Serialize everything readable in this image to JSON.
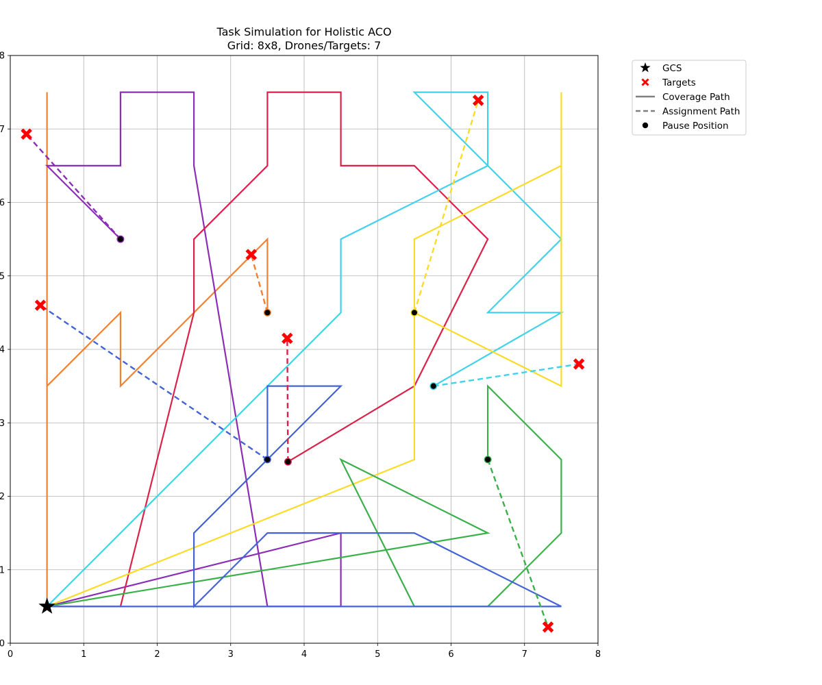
{
  "chart_data": {
    "type": "line",
    "title": "Task Simulation for Holistic ACO",
    "subtitle": "Grid: 8x8, Drones/Targets: 7",
    "xlabel": "",
    "ylabel": "",
    "xlim": [
      0,
      8
    ],
    "ylim": [
      0,
      8
    ],
    "xticks": [
      "0",
      "1",
      "2",
      "3",
      "4",
      "5",
      "6",
      "7",
      "8"
    ],
    "yticks": [
      "0",
      "1",
      "2",
      "3",
      "4",
      "5",
      "6",
      "7",
      "8"
    ],
    "grid": true,
    "legend_position": "outside-top-right",
    "legend": [
      {
        "label": "GCS",
        "kind": "star"
      },
      {
        "label": "Targets",
        "kind": "cross"
      },
      {
        "label": "Coverage Path",
        "kind": "solid"
      },
      {
        "label": "Assignment Path",
        "kind": "dashed"
      },
      {
        "label": "Pause Position",
        "kind": "dot"
      }
    ],
    "gcs": [
      0.5,
      0.5
    ],
    "drones": [
      {
        "color": "#f08030",
        "coverage": [
          [
            0.5,
            0.5
          ],
          [
            0.5,
            7.5
          ],
          [
            0.5,
            3.5
          ],
          [
            1.5,
            4.5
          ],
          [
            1.5,
            3.5
          ],
          [
            3.5,
            5.5
          ],
          [
            3.5,
            4.5
          ]
        ],
        "pause": [
          3.5,
          4.5
        ],
        "target": [
          3.28,
          5.29
        ]
      },
      {
        "color": "#8b2db5",
        "coverage": [
          [
            0.5,
            0.5
          ],
          [
            4.5,
            1.5
          ],
          [
            4.5,
            0.5
          ],
          [
            3.5,
            0.5
          ],
          [
            2.5,
            6.5
          ],
          [
            2.5,
            7.5
          ],
          [
            1.5,
            7.5
          ],
          [
            1.5,
            6.5
          ],
          [
            0.5,
            6.5
          ],
          [
            1.5,
            5.5
          ]
        ],
        "pause": [
          1.5,
          5.5
        ],
        "target": [
          0.22,
          6.93
        ]
      },
      {
        "color": "#dc2048",
        "coverage": [
          [
            0.5,
            0.5
          ],
          [
            1.5,
            0.5
          ],
          [
            2.5,
            4.5
          ],
          [
            2.5,
            5.5
          ],
          [
            3.5,
            6.5
          ],
          [
            3.5,
            7.5
          ],
          [
            4.5,
            7.5
          ],
          [
            4.5,
            6.5
          ],
          [
            5.5,
            6.5
          ],
          [
            6.5,
            5.5
          ],
          [
            5.5,
            3.5
          ],
          [
            3.78,
            2.47
          ]
        ],
        "pause": [
          3.78,
          2.47
        ],
        "target": [
          3.77,
          4.15
        ]
      },
      {
        "color": "#40d2ea",
        "coverage": [
          [
            0.5,
            0.5
          ],
          [
            4.5,
            4.5
          ],
          [
            4.5,
            5.5
          ],
          [
            6.5,
            6.5
          ],
          [
            6.5,
            7.5
          ],
          [
            5.5,
            7.5
          ],
          [
            7.5,
            5.5
          ],
          [
            6.5,
            4.5
          ],
          [
            7.5,
            4.5
          ],
          [
            5.76,
            3.5
          ]
        ],
        "pause": [
          5.76,
          3.5
        ],
        "target": [
          7.74,
          3.8
        ]
      },
      {
        "color": "#fadc28",
        "coverage": [
          [
            0.5,
            0.5
          ],
          [
            5.5,
            2.5
          ],
          [
            5.5,
            5.5
          ],
          [
            7.5,
            6.5
          ],
          [
            7.5,
            7.5
          ],
          [
            7.5,
            3.5
          ],
          [
            5.5,
            4.5
          ]
        ],
        "pause": [
          5.5,
          4.5
        ],
        "target": [
          6.37,
          7.39
        ]
      },
      {
        "color": "#3ab04a",
        "coverage": [
          [
            0.5,
            0.5
          ],
          [
            6.5,
            1.5
          ],
          [
            4.5,
            2.5
          ],
          [
            5.5,
            0.5
          ],
          [
            6.5,
            0.5
          ],
          [
            7.5,
            1.5
          ],
          [
            7.5,
            2.5
          ],
          [
            6.5,
            3.5
          ],
          [
            6.5,
            2.5
          ]
        ],
        "pause": [
          6.5,
          2.5
        ],
        "target": [
          7.32,
          0.22
        ]
      },
      {
        "color": "#4262d6",
        "coverage": [
          [
            0.5,
            0.5
          ],
          [
            7.5,
            0.5
          ],
          [
            5.5,
            1.5
          ],
          [
            3.5,
            1.5
          ],
          [
            2.5,
            0.5
          ],
          [
            2.5,
            1.5
          ],
          [
            4.5,
            3.5
          ],
          [
            3.5,
            3.5
          ],
          [
            3.5,
            2.5
          ]
        ],
        "pause": [
          3.5,
          2.5
        ],
        "target": [
          0.41,
          4.6
        ]
      }
    ]
  }
}
